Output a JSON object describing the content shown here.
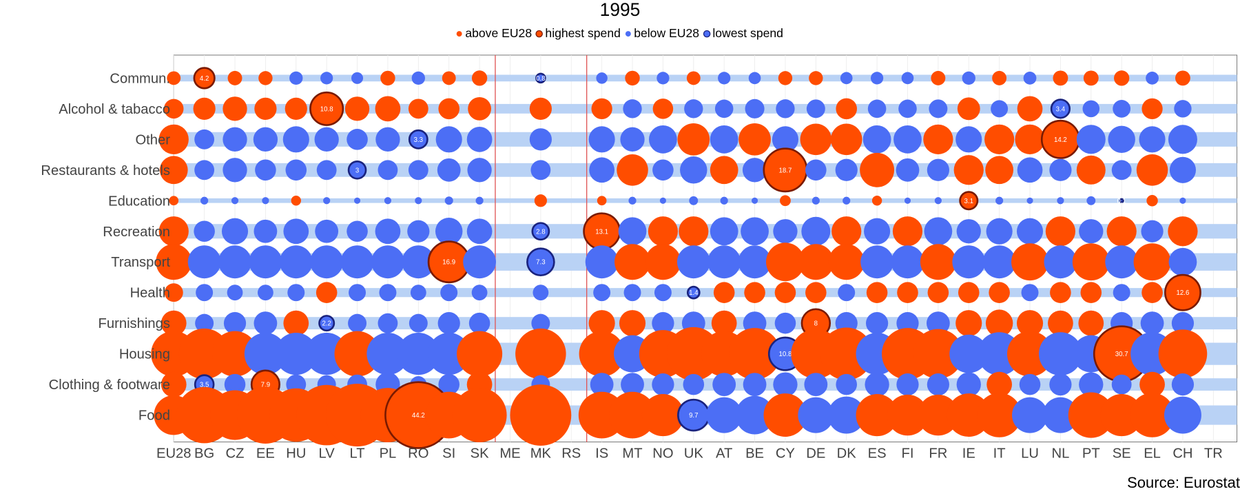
{
  "chart_data": {
    "type": "bubble",
    "title": "1995",
    "legend": [
      {
        "label": "above EU28",
        "color": "#ff4d00",
        "stroke": "none"
      },
      {
        "label": "highest spend",
        "color": "#ff4d00",
        "stroke": "#7a1a00"
      },
      {
        "label": "below EU28",
        "color": "#4c6ef5",
        "stroke": "none"
      },
      {
        "label": "lowest spend",
        "color": "#4c6ef5",
        "stroke": "#1a237e"
      }
    ],
    "source": "Source: Eurostat",
    "countries": [
      "EU28",
      "BG",
      "CZ",
      "EE",
      "HU",
      "LV",
      "LT",
      "PL",
      "RO",
      "SI",
      "SK",
      "ME",
      "MK",
      "RS",
      "IS",
      "MT",
      "NO",
      "UK",
      "AT",
      "BE",
      "CY",
      "DE",
      "DK",
      "ES",
      "FI",
      "FR",
      "IE",
      "IT",
      "LU",
      "NL",
      "PT",
      "SE",
      "EL",
      "CH",
      "TR"
    ],
    "categories": [
      "Commun.",
      "Alcohol & tabacco",
      "Other",
      "Restaurants & hotels",
      "Education",
      "Recreation",
      "Transport",
      "Health",
      "Furnishings",
      "Housing",
      "Clothing & footware",
      "Food"
    ],
    "colors": {
      "above": "#ff4d00",
      "below": "#4c6ef5",
      "highlight_above": "#7a1a00",
      "highlight_below": "#1a237e",
      "band": "#b9d2f5",
      "divider": "#e05555"
    },
    "series": [
      {
        "name": "Commun.",
        "values": [
          1.9,
          4.2,
          2.1,
          2.0,
          1.8,
          1.6,
          1.4,
          2.2,
          1.8,
          1.9,
          2.4,
          null,
          0.8,
          null,
          1.3,
          2.2,
          1.6,
          1.9,
          1.6,
          1.5,
          2.0,
          2.0,
          1.5,
          1.6,
          1.5,
          2.1,
          1.8,
          2.1,
          1.7,
          2.3,
          2.3,
          2.4,
          1.7,
          2.3,
          null
        ],
        "highlight": [
          false,
          true,
          false,
          false,
          false,
          false,
          false,
          false,
          false,
          false,
          false,
          false,
          true,
          false,
          false,
          false,
          false,
          false,
          false,
          false,
          false,
          false,
          false,
          false,
          false,
          false,
          false,
          false,
          false,
          false,
          false,
          false,
          false,
          false,
          false
        ]
      },
      {
        "name": "Alcohol & tabacco",
        "values": [
          3.9,
          5.0,
          6.0,
          5.0,
          5.0,
          10.8,
          6.0,
          6.5,
          4.0,
          4.5,
          5.5,
          null,
          5.0,
          null,
          4.4,
          3.6,
          4.2,
          3.6,
          3.4,
          3.8,
          3.6,
          3.5,
          4.5,
          3.4,
          3.4,
          3.5,
          5.2,
          3.0,
          6.5,
          3.4,
          2.9,
          3.2,
          4.4,
          3.1,
          null
        ],
        "highlight": [
          false,
          false,
          false,
          false,
          false,
          true,
          false,
          false,
          false,
          false,
          false,
          false,
          false,
          false,
          false,
          false,
          false,
          false,
          false,
          false,
          false,
          false,
          false,
          false,
          false,
          false,
          false,
          false,
          false,
          true,
          false,
          false,
          false,
          false,
          false
        ]
      },
      {
        "name": "Other",
        "values": [
          9.0,
          4.0,
          6.0,
          6.0,
          7.0,
          6.0,
          4.5,
          6.0,
          3.3,
          7.0,
          6.5,
          null,
          5.0,
          null,
          7.0,
          6.0,
          8.0,
          10.5,
          8.0,
          10.5,
          7.0,
          10.0,
          10.0,
          8.0,
          8.0,
          9.0,
          7.0,
          9.0,
          9.0,
          14.2,
          8.5,
          7.5,
          7.0,
          8.5,
          null
        ],
        "highlight": [
          false,
          false,
          false,
          false,
          false,
          false,
          false,
          false,
          true,
          false,
          false,
          false,
          false,
          false,
          false,
          false,
          false,
          false,
          false,
          false,
          false,
          false,
          false,
          false,
          false,
          false,
          false,
          false,
          false,
          true,
          false,
          false,
          false,
          false,
          false
        ]
      },
      {
        "name": "Restaurants & hotels",
        "values": [
          8.0,
          4.0,
          6.0,
          4.5,
          4.5,
          4.0,
          3.0,
          4.0,
          4.0,
          5.5,
          6.0,
          null,
          4.0,
          null,
          6.5,
          10.0,
          4.5,
          7.5,
          8.0,
          6.0,
          18.7,
          4.5,
          5.0,
          12.0,
          5.5,
          5.0,
          9.0,
          8.0,
          6.5,
          5.0,
          8.5,
          4.0,
          10.0,
          7.0,
          null
        ],
        "highlight": [
          false,
          false,
          false,
          false,
          false,
          false,
          true,
          false,
          false,
          false,
          false,
          false,
          false,
          false,
          false,
          false,
          false,
          false,
          false,
          false,
          true,
          false,
          false,
          false,
          false,
          false,
          false,
          false,
          false,
          false,
          false,
          false,
          false,
          false,
          false
        ]
      },
      {
        "name": "Education",
        "values": [
          0.9,
          0.6,
          0.5,
          0.5,
          1.0,
          0.5,
          0.4,
          0.5,
          0.5,
          0.7,
          0.6,
          null,
          1.6,
          null,
          0.9,
          0.6,
          0.4,
          0.8,
          0.6,
          0.4,
          1.2,
          0.6,
          0.6,
          1.0,
          0.4,
          0.5,
          3.1,
          0.6,
          0.4,
          0.5,
          0.8,
          0.1,
          1.3,
          0.4,
          null
        ],
        "highlight": [
          false,
          false,
          false,
          false,
          false,
          false,
          false,
          false,
          false,
          false,
          false,
          false,
          false,
          false,
          false,
          false,
          false,
          false,
          false,
          false,
          false,
          false,
          false,
          false,
          false,
          false,
          true,
          false,
          false,
          false,
          false,
          true,
          false,
          false,
          false
        ]
      },
      {
        "name": "Recreation",
        "values": [
          9.0,
          4.5,
          7.0,
          5.5,
          6.5,
          5.5,
          4.5,
          6.5,
          5.0,
          7.5,
          6.5,
          null,
          2.8,
          null,
          13.1,
          8.0,
          9.0,
          9.0,
          8.0,
          8.0,
          6.0,
          8.5,
          9.0,
          7.0,
          9.0,
          8.0,
          6.0,
          7.0,
          7.0,
          9.0,
          6.0,
          9.0,
          5.0,
          9.0,
          null
        ],
        "highlight": [
          false,
          false,
          false,
          false,
          false,
          false,
          false,
          false,
          false,
          false,
          false,
          false,
          true,
          false,
          true,
          false,
          false,
          false,
          false,
          false,
          false,
          false,
          false,
          false,
          false,
          false,
          false,
          false,
          false,
          false,
          false,
          false,
          false,
          false,
          false
        ]
      },
      {
        "name": "Transport",
        "values": [
          13.0,
          11.0,
          11.0,
          11.0,
          11.0,
          11.0,
          11.0,
          11.0,
          11.0,
          16.9,
          11.0,
          null,
          7.3,
          null,
          11.0,
          13.0,
          13.0,
          11.0,
          11.0,
          11.0,
          15.0,
          13.0,
          13.0,
          11.0,
          11.0,
          13.0,
          11.0,
          11.0,
          14.0,
          11.0,
          14.0,
          11.0,
          14.0,
          8.0,
          null
        ],
        "highlight": [
          false,
          false,
          false,
          false,
          false,
          false,
          false,
          false,
          false,
          true,
          false,
          false,
          true,
          false,
          false,
          false,
          false,
          false,
          false,
          false,
          false,
          false,
          false,
          false,
          false,
          false,
          false,
          false,
          false,
          false,
          false,
          false,
          false,
          false,
          false
        ]
      },
      {
        "name": "Health",
        "values": [
          3.5,
          3.0,
          2.5,
          2.5,
          3.0,
          4.5,
          3.0,
          3.0,
          2.5,
          3.0,
          2.5,
          null,
          2.5,
          null,
          3.0,
          3.0,
          3.0,
          1.4,
          4.5,
          4.5,
          4.5,
          4.5,
          3.0,
          4.5,
          4.5,
          4.5,
          4.5,
          4.5,
          3.0,
          4.5,
          4.5,
          3.0,
          4.5,
          12.6,
          null
        ],
        "highlight": [
          false,
          false,
          false,
          false,
          false,
          false,
          false,
          false,
          false,
          false,
          false,
          false,
          false,
          false,
          false,
          false,
          false,
          true,
          false,
          false,
          false,
          false,
          false,
          false,
          false,
          false,
          false,
          false,
          false,
          false,
          false,
          false,
          false,
          true,
          false
        ]
      },
      {
        "name": "Furnishings",
        "values": [
          6.5,
          3.5,
          5.0,
          5.5,
          6.5,
          2.2,
          3.5,
          4.0,
          3.5,
          5.0,
          4.5,
          null,
          3.5,
          null,
          7.0,
          7.0,
          5.0,
          5.5,
          6.5,
          5.5,
          4.5,
          8.0,
          5.0,
          5.0,
          5.0,
          5.5,
          7.0,
          7.5,
          7.0,
          6.5,
          6.5,
          5.0,
          5.5,
          5.0,
          null
        ],
        "highlight": [
          false,
          false,
          false,
          false,
          false,
          true,
          false,
          false,
          false,
          false,
          false,
          false,
          false,
          false,
          false,
          false,
          false,
          false,
          false,
          false,
          false,
          true,
          false,
          false,
          false,
          false,
          false,
          false,
          false,
          false,
          false,
          false,
          false,
          false,
          false
        ]
      },
      {
        "name": "Housing",
        "values": [
          21.0,
          26.0,
          21.0,
          18.0,
          18.0,
          18.0,
          21.0,
          18.0,
          18.0,
          18.0,
          21.0,
          null,
          26.0,
          null,
          21.0,
          14.0,
          23.0,
          29.0,
          21.0,
          27.0,
          10.8,
          25.0,
          28.0,
          18.0,
          27.0,
          25.0,
          15.0,
          19.0,
          21.0,
          19.0,
          14.0,
          30.7,
          19.0,
          24.0,
          null
        ],
        "highlight": [
          false,
          false,
          false,
          false,
          false,
          false,
          false,
          false,
          false,
          false,
          false,
          false,
          false,
          false,
          false,
          false,
          false,
          false,
          false,
          false,
          true,
          false,
          false,
          false,
          false,
          false,
          false,
          false,
          false,
          false,
          false,
          true,
          false,
          false,
          false
        ]
      },
      {
        "name": "Clothing & footware",
        "values": [
          6.5,
          3.5,
          4.5,
          7.9,
          4.0,
          3.5,
          4.0,
          6.0,
          2.8,
          4.5,
          6.5,
          null,
          3.5,
          null,
          5.5,
          5.5,
          5.0,
          4.5,
          5.5,
          5.5,
          6.0,
          5.5,
          4.5,
          6.0,
          5.0,
          5.0,
          6.0,
          6.5,
          4.5,
          5.0,
          6.0,
          4.0,
          6.5,
          5.0,
          null
        ],
        "highlight": [
          false,
          true,
          false,
          true,
          false,
          false,
          false,
          false,
          false,
          false,
          false,
          false,
          false,
          false,
          false,
          false,
          false,
          false,
          false,
          false,
          false,
          false,
          false,
          false,
          false,
          false,
          false,
          false,
          false,
          false,
          false,
          false,
          false,
          false,
          false
        ]
      },
      {
        "name": "Food",
        "values": [
          16.0,
          32.0,
          25.0,
          33.0,
          29.0,
          37.0,
          40.0,
          30.0,
          44.2,
          22.0,
          30.0,
          null,
          38.0,
          null,
          22.0,
          22.0,
          18.0,
          9.7,
          13.0,
          15.0,
          19.0,
          13.0,
          14.0,
          18.0,
          17.0,
          17.0,
          19.0,
          20.0,
          13.0,
          13.0,
          21.0,
          18.0,
          20.0,
          14.0,
          null
        ],
        "highlight": [
          false,
          false,
          false,
          false,
          false,
          false,
          false,
          false,
          true,
          false,
          false,
          false,
          false,
          false,
          false,
          false,
          false,
          true,
          false,
          false,
          false,
          false,
          false,
          false,
          false,
          false,
          false,
          false,
          false,
          false,
          false,
          false,
          false,
          false,
          false
        ]
      }
    ]
  }
}
